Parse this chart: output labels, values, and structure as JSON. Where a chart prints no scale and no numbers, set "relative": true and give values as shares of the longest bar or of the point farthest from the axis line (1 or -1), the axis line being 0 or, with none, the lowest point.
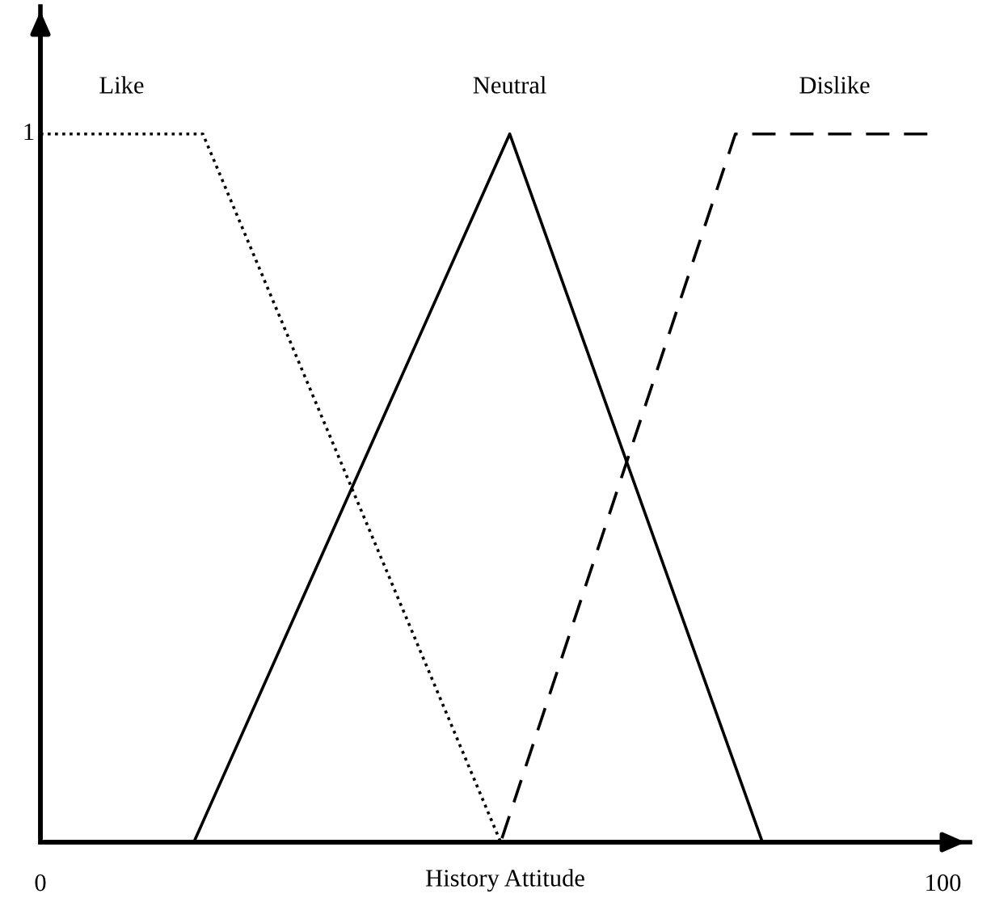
{
  "chart_data": {
    "type": "line",
    "xlabel": "History Attitude",
    "series": [
      {
        "name": "Like",
        "color": "#000000",
        "line_style": "dotted",
        "x": [
          0,
          18,
          51,
          100
        ],
        "values": [
          1,
          1,
          0,
          0
        ]
      },
      {
        "name": "Neutral",
        "color": "#000000",
        "line_style": "solid",
        "x": [
          17,
          52,
          80
        ],
        "values": [
          0,
          1,
          0
        ]
      },
      {
        "name": "Dislike",
        "color": "#000000",
        "line_style": "dashed",
        "x": [
          1,
          51,
          77,
          99
        ],
        "values": [
          0,
          0,
          1,
          1
        ]
      }
    ],
    "xlim": [
      0,
      103
    ],
    "xticks": [
      0,
      100
    ],
    "relative": true,
    "annotations": [
      "1"
    ],
    "tick_labels": "x",
    "grid": false,
    "legend": false,
    "marker": "none"
  }
}
